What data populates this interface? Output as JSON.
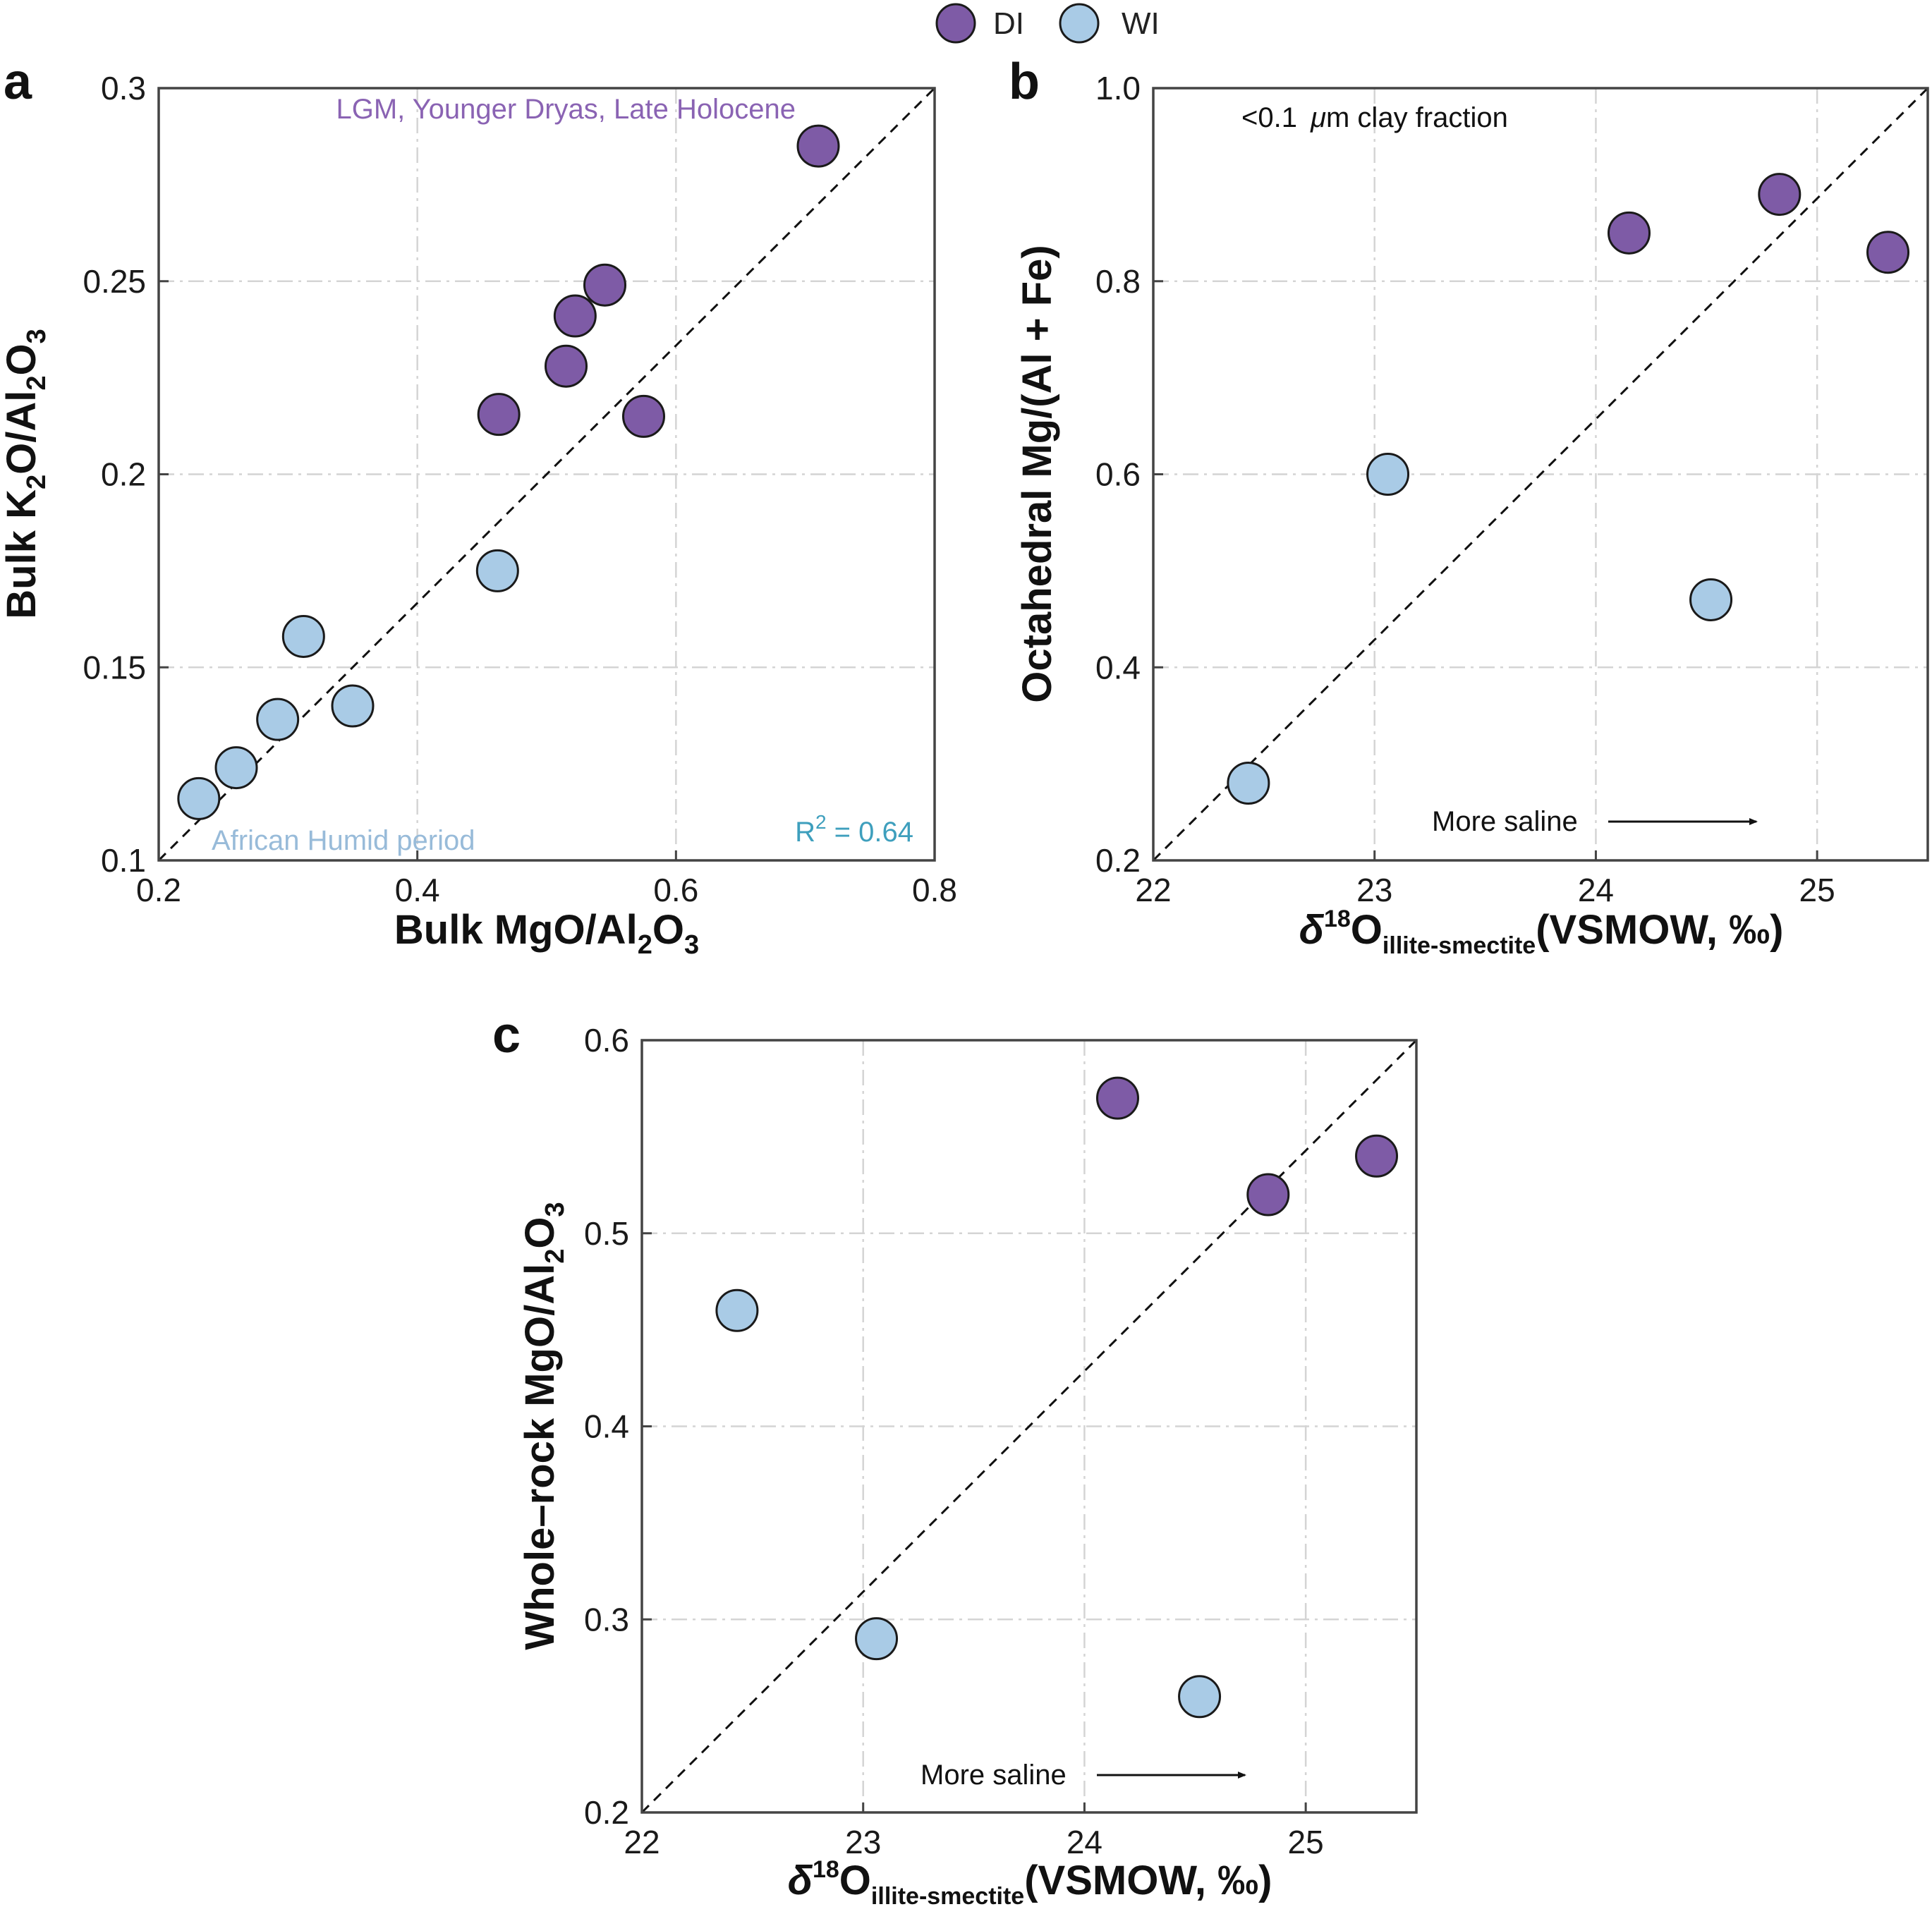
{
  "colors": {
    "DI": "#7e5ba6",
    "WI": "#a9cbe6",
    "edge": "#1a1a1a",
    "di_note": "#8a63b3",
    "wi_note": "#98bbd9",
    "r2_note": "#3e9fbd"
  },
  "legend": {
    "items": [
      {
        "label": "DI",
        "color_key": "DI"
      },
      {
        "label": "WI",
        "color_key": "WI"
      }
    ]
  },
  "chart_data": [
    {
      "panel": "a",
      "type": "scatter",
      "xlabel": {
        "main": "Bulk MgO/Al",
        "sub1": "2",
        "mid": "O",
        "sub2": "3"
      },
      "ylabel": {
        "pre": "Bulk K",
        "sub1": "2",
        "mid": "O/Al",
        "sub2": "2",
        "post": "O",
        "sub3": "3"
      },
      "xlim": [
        0.2,
        0.8
      ],
      "ylim": [
        0.1,
        0.3
      ],
      "xticks": [
        0.2,
        0.4,
        0.6,
        0.8
      ],
      "xtick_labels": [
        "0.2",
        "0.4",
        "0.6",
        "0.8"
      ],
      "yticks": [
        0.1,
        0.15,
        0.2,
        0.25,
        0.3
      ],
      "ytick_labels": [
        "0.1",
        "0.15",
        "0.2",
        "0.25",
        "0.3"
      ],
      "diagonal": true,
      "series": [
        {
          "name": "DI",
          "x": [
            0.71,
            0.545,
            0.522,
            0.515,
            0.463,
            0.575
          ],
          "y": [
            0.285,
            0.249,
            0.241,
            0.228,
            0.2155,
            0.215
          ]
        },
        {
          "name": "WI",
          "x": [
            0.462,
            0.312,
            0.35,
            0.292,
            0.26,
            0.231
          ],
          "y": [
            0.175,
            0.158,
            0.14,
            0.1365,
            0.124,
            0.116
          ]
        }
      ],
      "annotations": {
        "di_period": "LGM, Younger Dryas, Late Holocene",
        "wi_period": "African Humid period",
        "r2_prefix": "R",
        "r2_exp": "2",
        "r2_value": " = 0.64"
      }
    },
    {
      "panel": "b",
      "type": "scatter",
      "xlabel": {
        "delta": "δ",
        "sup": "18",
        "main": "O",
        "sub": "illite-smectite",
        "post": "(VSMOW, ‰)"
      },
      "ylabel": {
        "text": "Octahedral Mg/(Al + Fe)"
      },
      "xlim": [
        22,
        25.5
      ],
      "ylim": [
        0.2,
        1.0
      ],
      "xticks": [
        22,
        23,
        24,
        25
      ],
      "xtick_labels": [
        "22",
        "23",
        "24",
        "25"
      ],
      "yticks": [
        0.2,
        0.4,
        0.6,
        0.8,
        1.0
      ],
      "ytick_labels": [
        "0.2",
        "0.4",
        "0.6",
        "0.8",
        "1.0"
      ],
      "diagonal": true,
      "series": [
        {
          "name": "DI",
          "x": [
            24.15,
            24.83,
            25.32
          ],
          "y": [
            0.85,
            0.89,
            0.83
          ]
        },
        {
          "name": "WI",
          "x": [
            23.06,
            24.52,
            22.43
          ],
          "y": [
            0.6,
            0.47,
            0.28
          ]
        }
      ],
      "annotations": {
        "fraction_lt": "<0.1 ",
        "fraction_mu": "μ",
        "fraction_rest": "m clay fraction",
        "saline": "More saline"
      }
    },
    {
      "panel": "c",
      "type": "scatter",
      "xlabel": {
        "delta": "δ",
        "sup": "18",
        "main": "O",
        "sub": "illite-smectite",
        "post": "(VSMOW, ‰)"
      },
      "ylabel": {
        "pre": "Whole–rock MgO/Al",
        "sub1": "2",
        "mid": "O",
        "sub2": "3"
      },
      "xlim": [
        22,
        25.5
      ],
      "ylim": [
        0.2,
        0.6
      ],
      "xticks": [
        22,
        23,
        24,
        25
      ],
      "xtick_labels": [
        "22",
        "23",
        "24",
        "25"
      ],
      "yticks": [
        0.2,
        0.3,
        0.4,
        0.5,
        0.6
      ],
      "ytick_labels": [
        "0.2",
        "0.3",
        "0.4",
        "0.5",
        "0.6"
      ],
      "diagonal": true,
      "series": [
        {
          "name": "DI",
          "x": [
            24.15,
            24.83,
            25.32
          ],
          "y": [
            0.57,
            0.52,
            0.54
          ]
        },
        {
          "name": "WI",
          "x": [
            22.43,
            23.06,
            24.52
          ],
          "y": [
            0.46,
            0.29,
            0.26
          ]
        }
      ],
      "annotations": {
        "saline": "More saline"
      }
    }
  ]
}
